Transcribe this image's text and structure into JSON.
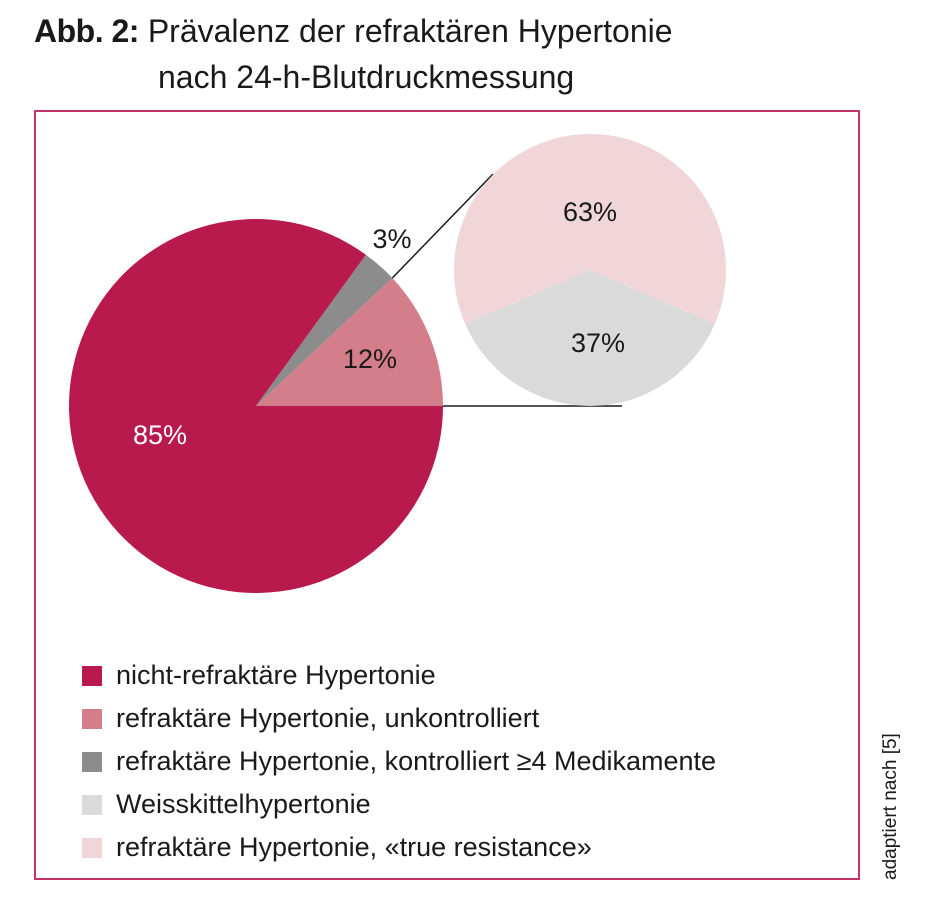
{
  "figure": {
    "label": "Abb. 2:",
    "title_line1": "Prävalenz der refraktären Hypertonie",
    "title_line2": "nach 24-h-Blutdruckmessung",
    "source_note": "adaptiert nach [5]"
  },
  "chart_data": [
    {
      "type": "pie",
      "title": "",
      "slices": [
        {
          "label": "nicht-refraktäre Hypertonie",
          "value": 85,
          "display": "85%",
          "color": "#b81a4e"
        },
        {
          "label": "refraktäre Hypertonie, unkontrolliert",
          "value": 12,
          "display": "12%",
          "color": "#d47d8b"
        },
        {
          "label": "refraktäre Hypertonie, kontrolliert ≥4 Medikamente",
          "value": 3,
          "display": "3%",
          "color": "#8c8c8c"
        }
      ]
    },
    {
      "type": "pie",
      "title": "",
      "breakdown_of": "refraktäre Hypertonie, unkontrolliert",
      "slices": [
        {
          "label": "refraktäre Hypertonie, «true resistance»",
          "value": 63,
          "display": "63%",
          "color": "#f0d5d9"
        },
        {
          "label": "Weisskittelhypertonie",
          "value": 37,
          "display": "37%",
          "color": "#dadada"
        }
      ]
    }
  ],
  "legend": [
    {
      "label": "nicht-refraktäre Hypertonie",
      "color": "#b81a4e"
    },
    {
      "label": "refraktäre Hypertonie, unkontrolliert",
      "color": "#d47d8b"
    },
    {
      "label": "refraktäre Hypertonie, kontrolliert ≥4 Medikamente",
      "color": "#8c8c8c"
    },
    {
      "label": "Weisskittelhypertonie",
      "color": "#dadada"
    },
    {
      "label": "refraktäre Hypertonie, «true resistance»",
      "color": "#f0d5d9"
    }
  ],
  "colors": {
    "frame": "#c4336a",
    "connector": "#1a1a1a"
  }
}
